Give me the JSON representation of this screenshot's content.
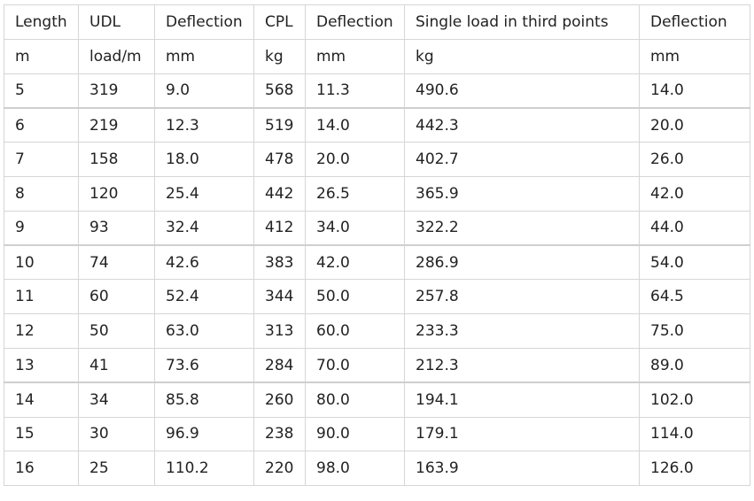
{
  "table": {
    "header": [
      "Length",
      "UDL",
      "Deflection",
      "CPL",
      "Deflection",
      "Single load in third points",
      "Deflection"
    ],
    "units": [
      "m",
      "load/m",
      "mm",
      "kg",
      "mm",
      "kg",
      "mm"
    ],
    "rows": [
      [
        "5",
        "319",
        "9.0",
        "568",
        "11.3",
        "490.6",
        "14.0"
      ],
      [
        "6",
        "219",
        "12.3",
        "519",
        "14.0",
        "442.3",
        "20.0"
      ],
      [
        "7",
        "158",
        "18.0",
        "478",
        "20.0",
        "402.7",
        "26.0"
      ],
      [
        "8",
        "120",
        "25.4",
        "442",
        "26.5",
        "365.9",
        "42.0"
      ],
      [
        "9",
        "93",
        "32.4",
        "412",
        "34.0",
        "322.2",
        "44.0"
      ],
      [
        "10",
        "74",
        "42.6",
        "383",
        "42.0",
        "286.9",
        "54.0"
      ],
      [
        "11",
        "60",
        "52.4",
        "344",
        "50.0",
        "257.8",
        "64.5"
      ],
      [
        "12",
        "50",
        "63.0",
        "313",
        "60.0",
        "233.3",
        "75.0"
      ],
      [
        "13",
        "41",
        "73.6",
        "284",
        "70.0",
        "212.3",
        "89.0"
      ],
      [
        "14",
        "34",
        "85.8",
        "260",
        "80.0",
        "194.1",
        "102.0"
      ],
      [
        "15",
        "30",
        "96.9",
        "238",
        "90.0",
        "179.1",
        "114.0"
      ],
      [
        "16",
        "25",
        "110.2",
        "220",
        "98.0",
        "163.9",
        "126.0"
      ]
    ]
  }
}
